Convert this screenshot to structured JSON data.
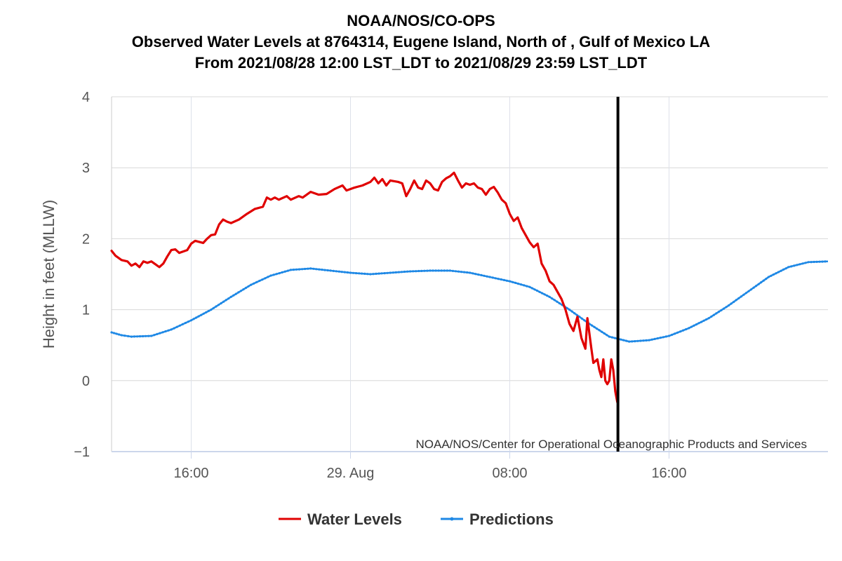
{
  "chart_data": {
    "type": "line",
    "title": [
      "NOAA/NOS/CO-OPS",
      "Observed Water Levels at 8764314, Eugene Island, North of , Gulf of Mexico LA",
      "From 2021/08/28 12:00 LST_LDT to 2021/08/29 23:59 LST_LDT"
    ],
    "ylabel": "Height in feet (MLLW)",
    "xlabel": "",
    "ylim": [
      -1,
      4
    ],
    "xlim": [
      "2021-08-28T12:00",
      "2021-08-29T23:59"
    ],
    "y_ticks": [
      "4",
      "3",
      "2",
      "1",
      "0",
      "−1"
    ],
    "x_ticks": [
      {
        "t": "2021-08-28T16:00",
        "label": "16:00"
      },
      {
        "t": "2021-08-29T00:00",
        "label": "29. Aug"
      },
      {
        "t": "2021-08-29T08:00",
        "label": "08:00"
      },
      {
        "t": "2021-08-29T16:00",
        "label": "16:00"
      }
    ],
    "grid": true,
    "legend_position": "bottom-center",
    "credit": "NOAA/NOS/Center for Operational Oceanographic Products and Services",
    "now_marker": "2021-08-29T13:26",
    "series": [
      {
        "name": "Water Levels",
        "color": "#e00000",
        "points": [
          [
            "2021-08-28T12:00",
            1.83
          ],
          [
            "2021-08-28T12:12",
            1.76
          ],
          [
            "2021-08-28T12:30",
            1.7
          ],
          [
            "2021-08-28T12:48",
            1.68
          ],
          [
            "2021-08-28T13:00",
            1.62
          ],
          [
            "2021-08-28T13:12",
            1.65
          ],
          [
            "2021-08-28T13:24",
            1.6
          ],
          [
            "2021-08-28T13:36",
            1.68
          ],
          [
            "2021-08-28T13:48",
            1.66
          ],
          [
            "2021-08-28T14:00",
            1.68
          ],
          [
            "2021-08-28T14:12",
            1.64
          ],
          [
            "2021-08-28T14:24",
            1.6
          ],
          [
            "2021-08-28T14:36",
            1.65
          ],
          [
            "2021-08-28T14:48",
            1.75
          ],
          [
            "2021-08-28T15:00",
            1.84
          ],
          [
            "2021-08-28T15:12",
            1.85
          ],
          [
            "2021-08-28T15:24",
            1.8
          ],
          [
            "2021-08-28T15:48",
            1.84
          ],
          [
            "2021-08-28T16:00",
            1.93
          ],
          [
            "2021-08-28T16:12",
            1.97
          ],
          [
            "2021-08-28T16:36",
            1.94
          ],
          [
            "2021-08-28T16:48",
            2.0
          ],
          [
            "2021-08-28T17:00",
            2.05
          ],
          [
            "2021-08-28T17:12",
            2.06
          ],
          [
            "2021-08-28T17:24",
            2.2
          ],
          [
            "2021-08-28T17:36",
            2.27
          ],
          [
            "2021-08-28T17:48",
            2.24
          ],
          [
            "2021-08-28T18:00",
            2.22
          ],
          [
            "2021-08-28T18:24",
            2.27
          ],
          [
            "2021-08-28T18:48",
            2.35
          ],
          [
            "2021-08-28T19:12",
            2.42
          ],
          [
            "2021-08-28T19:36",
            2.45
          ],
          [
            "2021-08-28T19:48",
            2.58
          ],
          [
            "2021-08-28T20:00",
            2.55
          ],
          [
            "2021-08-28T20:12",
            2.58
          ],
          [
            "2021-08-28T20:24",
            2.55
          ],
          [
            "2021-08-28T20:48",
            2.6
          ],
          [
            "2021-08-28T21:00",
            2.55
          ],
          [
            "2021-08-28T21:24",
            2.6
          ],
          [
            "2021-08-28T21:36",
            2.58
          ],
          [
            "2021-08-28T22:00",
            2.66
          ],
          [
            "2021-08-28T22:24",
            2.62
          ],
          [
            "2021-08-28T22:48",
            2.63
          ],
          [
            "2021-08-28T23:12",
            2.7
          ],
          [
            "2021-08-28T23:36",
            2.75
          ],
          [
            "2021-08-28T23:48",
            2.68
          ],
          [
            "2021-08-29T00:12",
            2.72
          ],
          [
            "2021-08-29T00:36",
            2.75
          ],
          [
            "2021-08-29T01:00",
            2.8
          ],
          [
            "2021-08-29T01:12",
            2.86
          ],
          [
            "2021-08-29T01:24",
            2.78
          ],
          [
            "2021-08-29T01:36",
            2.84
          ],
          [
            "2021-08-29T01:48",
            2.75
          ],
          [
            "2021-08-29T02:00",
            2.82
          ],
          [
            "2021-08-29T02:24",
            2.8
          ],
          [
            "2021-08-29T02:36",
            2.78
          ],
          [
            "2021-08-29T02:48",
            2.6
          ],
          [
            "2021-08-29T03:00",
            2.7
          ],
          [
            "2021-08-29T03:12",
            2.82
          ],
          [
            "2021-08-29T03:24",
            2.72
          ],
          [
            "2021-08-29T03:36",
            2.7
          ],
          [
            "2021-08-29T03:48",
            2.82
          ],
          [
            "2021-08-29T04:00",
            2.78
          ],
          [
            "2021-08-29T04:12",
            2.7
          ],
          [
            "2021-08-29T04:24",
            2.68
          ],
          [
            "2021-08-29T04:36",
            2.8
          ],
          [
            "2021-08-29T04:48",
            2.85
          ],
          [
            "2021-08-29T05:00",
            2.88
          ],
          [
            "2021-08-29T05:12",
            2.93
          ],
          [
            "2021-08-29T05:24",
            2.82
          ],
          [
            "2021-08-29T05:36",
            2.72
          ],
          [
            "2021-08-29T05:48",
            2.78
          ],
          [
            "2021-08-29T06:00",
            2.76
          ],
          [
            "2021-08-29T06:12",
            2.78
          ],
          [
            "2021-08-29T06:24",
            2.72
          ],
          [
            "2021-08-29T06:36",
            2.7
          ],
          [
            "2021-08-29T06:48",
            2.62
          ],
          [
            "2021-08-29T07:00",
            2.7
          ],
          [
            "2021-08-29T07:12",
            2.73
          ],
          [
            "2021-08-29T07:24",
            2.65
          ],
          [
            "2021-08-29T07:36",
            2.55
          ],
          [
            "2021-08-29T07:48",
            2.5
          ],
          [
            "2021-08-29T08:00",
            2.35
          ],
          [
            "2021-08-29T08:12",
            2.25
          ],
          [
            "2021-08-29T08:24",
            2.3
          ],
          [
            "2021-08-29T08:36",
            2.15
          ],
          [
            "2021-08-29T08:48",
            2.05
          ],
          [
            "2021-08-29T09:00",
            1.95
          ],
          [
            "2021-08-29T09:12",
            1.88
          ],
          [
            "2021-08-29T09:24",
            1.93
          ],
          [
            "2021-08-29T09:36",
            1.65
          ],
          [
            "2021-08-29T09:48",
            1.55
          ],
          [
            "2021-08-29T10:00",
            1.4
          ],
          [
            "2021-08-29T10:12",
            1.35
          ],
          [
            "2021-08-29T10:24",
            1.25
          ],
          [
            "2021-08-29T10:36",
            1.15
          ],
          [
            "2021-08-29T10:48",
            1.0
          ],
          [
            "2021-08-29T11:00",
            0.8
          ],
          [
            "2021-08-29T11:12",
            0.7
          ],
          [
            "2021-08-29T11:24",
            0.9
          ],
          [
            "2021-08-29T11:36",
            0.6
          ],
          [
            "2021-08-29T11:48",
            0.45
          ],
          [
            "2021-08-29T11:54",
            0.88
          ],
          [
            "2021-08-29T12:06",
            0.45
          ],
          [
            "2021-08-29T12:12",
            0.25
          ],
          [
            "2021-08-29T12:24",
            0.3
          ],
          [
            "2021-08-29T12:30",
            0.15
          ],
          [
            "2021-08-29T12:36",
            0.05
          ],
          [
            "2021-08-29T12:42",
            0.3
          ],
          [
            "2021-08-29T12:48",
            0.0
          ],
          [
            "2021-08-29T12:54",
            -0.05
          ],
          [
            "2021-08-29T13:00",
            0.0
          ],
          [
            "2021-08-29T13:06",
            0.3
          ],
          [
            "2021-08-29T13:12",
            0.15
          ],
          [
            "2021-08-29T13:18",
            -0.15
          ],
          [
            "2021-08-29T13:24",
            -0.3
          ],
          [
            "2021-08-29T13:26",
            -0.32
          ]
        ]
      },
      {
        "name": "Predictions",
        "color": "#1e88e5",
        "points": [
          [
            "2021-08-28T12:00",
            0.68
          ],
          [
            "2021-08-28T12:30",
            0.64
          ],
          [
            "2021-08-28T13:00",
            0.62
          ],
          [
            "2021-08-28T14:00",
            0.63
          ],
          [
            "2021-08-28T15:00",
            0.72
          ],
          [
            "2021-08-28T16:00",
            0.85
          ],
          [
            "2021-08-28T17:00",
            1.0
          ],
          [
            "2021-08-28T18:00",
            1.18
          ],
          [
            "2021-08-28T19:00",
            1.35
          ],
          [
            "2021-08-28T20:00",
            1.48
          ],
          [
            "2021-08-28T21:00",
            1.56
          ],
          [
            "2021-08-28T22:00",
            1.58
          ],
          [
            "2021-08-28T23:00",
            1.55
          ],
          [
            "2021-08-29T00:00",
            1.52
          ],
          [
            "2021-08-29T01:00",
            1.5
          ],
          [
            "2021-08-29T02:00",
            1.52
          ],
          [
            "2021-08-29T03:00",
            1.54
          ],
          [
            "2021-08-29T04:00",
            1.55
          ],
          [
            "2021-08-29T05:00",
            1.55
          ],
          [
            "2021-08-29T06:00",
            1.52
          ],
          [
            "2021-08-29T07:00",
            1.46
          ],
          [
            "2021-08-29T08:00",
            1.4
          ],
          [
            "2021-08-29T09:00",
            1.32
          ],
          [
            "2021-08-29T10:00",
            1.18
          ],
          [
            "2021-08-29T11:00",
            1.0
          ],
          [
            "2021-08-29T12:00",
            0.8
          ],
          [
            "2021-08-29T13:00",
            0.62
          ],
          [
            "2021-08-29T14:00",
            0.55
          ],
          [
            "2021-08-29T15:00",
            0.57
          ],
          [
            "2021-08-29T16:00",
            0.63
          ],
          [
            "2021-08-29T17:00",
            0.74
          ],
          [
            "2021-08-29T18:00",
            0.88
          ],
          [
            "2021-08-29T19:00",
            1.06
          ],
          [
            "2021-08-29T20:00",
            1.26
          ],
          [
            "2021-08-29T21:00",
            1.46
          ],
          [
            "2021-08-29T22:00",
            1.6
          ],
          [
            "2021-08-29T23:00",
            1.67
          ],
          [
            "2021-08-29T23:59",
            1.68
          ]
        ]
      }
    ]
  }
}
